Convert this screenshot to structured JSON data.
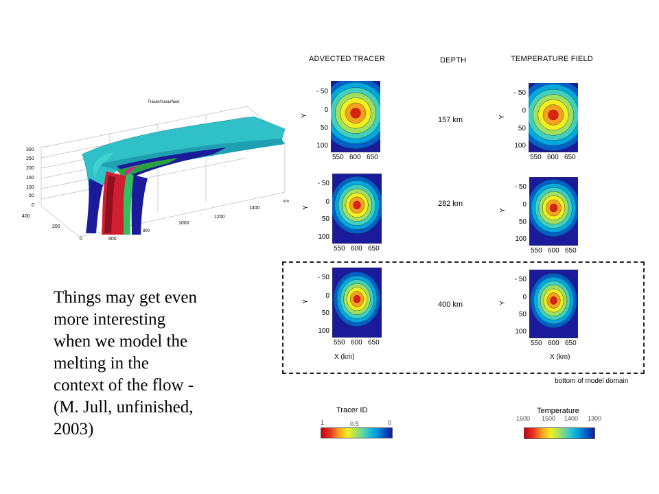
{
  "headers": {
    "advected": "ADVECTED TRACER",
    "depth": "DEPTH",
    "temperature": "TEMPERATURE FIELD"
  },
  "depths": [
    "157 km",
    "282 km",
    "400 km"
  ],
  "y_axis": {
    "label": "Y",
    "ticks": [
      "- 50",
      "0",
      "50",
      "100"
    ]
  },
  "x_axis": {
    "label": "X  (km)",
    "ticks": [
      "550",
      "600",
      "650"
    ]
  },
  "bottom_label": "bottom of model domain",
  "colorbars": {
    "tracer": {
      "title": "Tracer ID",
      "ticks": [
        "1",
        "0.5",
        "0"
      ]
    },
    "temperature": {
      "title": "Temperature",
      "ticks": [
        "1600",
        "1500",
        "1400",
        "1300"
      ]
    }
  },
  "plot3d": {
    "title": "Tracer/Isosurface",
    "z_ticks": [
      "300",
      "250",
      "200",
      "150",
      "100",
      "50",
      "0"
    ],
    "y_ticks": [
      "400",
      "200",
      "0"
    ],
    "x_ticks": [
      "600",
      "800",
      "1000",
      "1200",
      "1400",
      "km"
    ]
  },
  "caption": [
    "Things may get even",
    "more interesting",
    "when we model the",
    "melting in the",
    "context of the flow -",
    "(M. Jull, unfinished,",
    "2003)"
  ],
  "colors": {
    "outer": "#1a1a9a",
    "ring1": "#0060c8",
    "ring2": "#00a8e0",
    "ring3": "#40d0c0",
    "ring4": "#a0e060",
    "ring5": "#f0f020",
    "ring6": "#f8a020",
    "core": "#e02010"
  }
}
